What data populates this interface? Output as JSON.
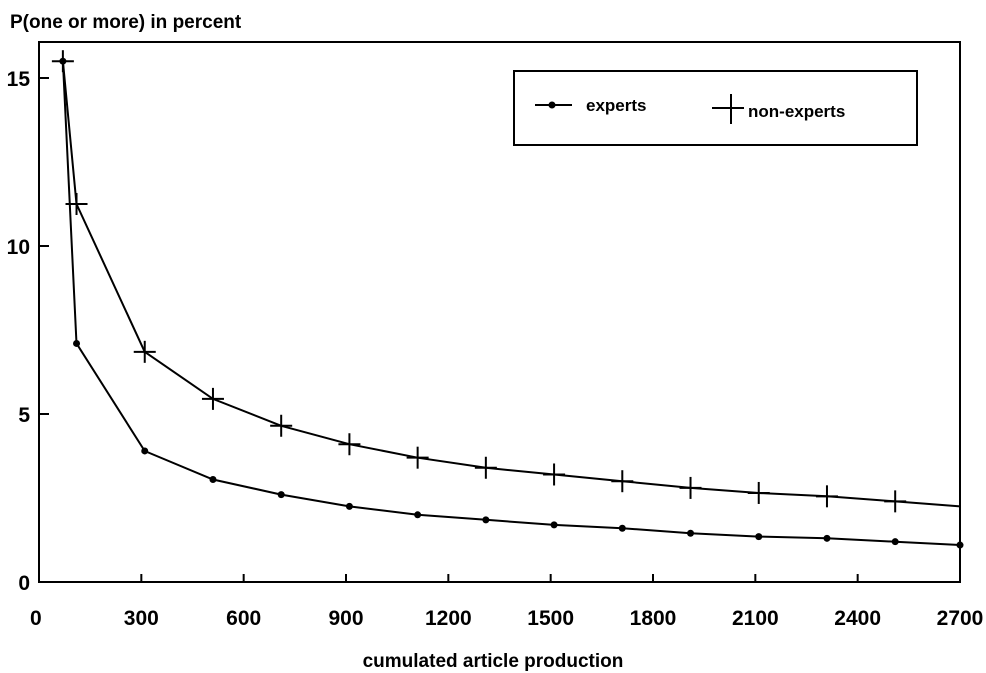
{
  "chart_data": {
    "type": "line",
    "ylabel": "P(one or more) in percent",
    "xlabel": "cumulated article production",
    "xlim": [
      0,
      2700
    ],
    "ylim": [
      0,
      16
    ],
    "x_ticks": [
      "0",
      "300",
      "600",
      "900",
      "1200",
      "1500",
      "1800",
      "2100",
      "2400",
      "2700"
    ],
    "y_ticks": [
      "0",
      "5",
      "10",
      "15"
    ],
    "grid": false,
    "legend_position": "top-right",
    "series": [
      {
        "name": "experts",
        "marker": "dot",
        "x": [
          70,
          110,
          310,
          510,
          710,
          910,
          1110,
          1310,
          1510,
          1710,
          1910,
          2110,
          2310,
          2510,
          2710
        ],
        "y": [
          15.5,
          7.1,
          3.9,
          3.05,
          2.6,
          2.25,
          2.0,
          1.85,
          1.7,
          1.6,
          1.45,
          1.35,
          1.3,
          1.2,
          1.1
        ]
      },
      {
        "name": "non-experts",
        "marker": "cross",
        "x": [
          70,
          110,
          310,
          510,
          710,
          910,
          1110,
          1310,
          1510,
          1710,
          1910,
          2110,
          2310,
          2510,
          2710
        ],
        "y": [
          15.5,
          11.25,
          6.85,
          5.45,
          4.65,
          4.1,
          3.7,
          3.4,
          3.2,
          3.0,
          2.8,
          2.65,
          2.55,
          2.4,
          2.25
        ]
      }
    ]
  }
}
